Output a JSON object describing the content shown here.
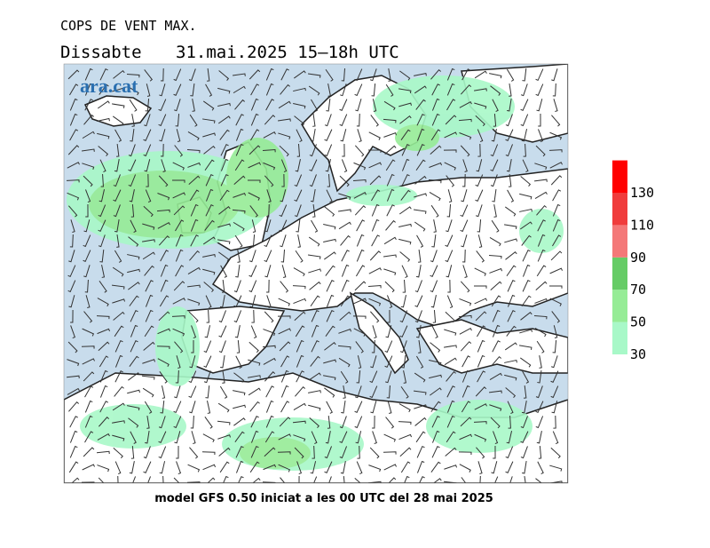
{
  "header": {
    "title": "COPS DE VENT MAX.",
    "day": "Dissabte",
    "date": "31.mai.2025 15–18h UTC"
  },
  "logo": "ara.cat",
  "legend": {
    "levels": [
      30,
      50,
      70,
      90,
      110,
      130
    ],
    "colors": [
      "#a8f8c8",
      "#96ec96",
      "#66cc66",
      "#f47878",
      "#f03c3c",
      "#ff0000"
    ]
  },
  "footer": "model GFS 0.50 iniciat a les 00 UTC del 28 mai 2025"
}
